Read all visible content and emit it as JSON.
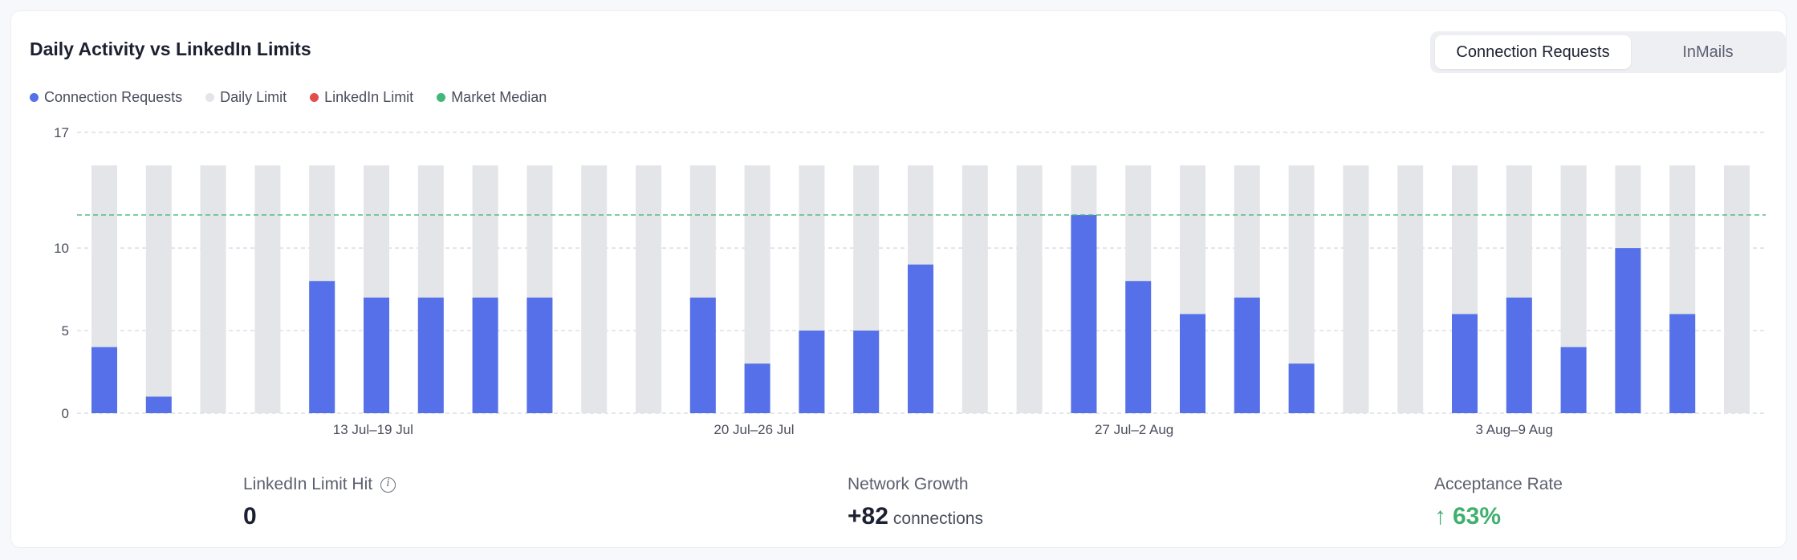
{
  "header": {
    "title": "Daily Activity vs LinkedIn Limits",
    "tabs": [
      {
        "label": "Connection Requests",
        "active": true
      },
      {
        "label": "InMails",
        "active": false
      }
    ]
  },
  "legend": [
    {
      "label": "Connection Requests",
      "color": "#5570e8"
    },
    {
      "label": "Daily Limit",
      "color": "#e4e5e9"
    },
    {
      "label": "LinkedIn Limit",
      "color": "#e54c4c"
    },
    {
      "label": "Market Median",
      "color": "#41b87a"
    }
  ],
  "chart_data": {
    "type": "bar",
    "title": "Daily Activity vs LinkedIn Limits",
    "xlabel": "",
    "ylabel": "",
    "ylim": [
      0,
      17
    ],
    "yticks": [
      0,
      5,
      10,
      17
    ],
    "x_week_labels": [
      {
        "label": "13 Jul–19 Jul",
        "start_index": 4
      },
      {
        "label": "20 Jul–26 Jul",
        "start_index": 11
      },
      {
        "label": "27 Jul–2 Aug",
        "start_index": 18
      },
      {
        "label": "3 Aug–9 Aug",
        "start_index": 25
      }
    ],
    "series": [
      {
        "name": "Connection Requests",
        "color": "#5570e8",
        "values": [
          4,
          1,
          0,
          0,
          8,
          7,
          7,
          7,
          7,
          0,
          0,
          7,
          3,
          5,
          5,
          9,
          0,
          0,
          12,
          8,
          6,
          7,
          3,
          0,
          0,
          6,
          7,
          4,
          10,
          6,
          0
        ]
      },
      {
        "name": "Daily Limit",
        "color": "#e4e5e9",
        "values": [
          15,
          15,
          15,
          15,
          15,
          15,
          15,
          15,
          15,
          15,
          15,
          15,
          15,
          15,
          15,
          15,
          15,
          15,
          15,
          15,
          15,
          15,
          15,
          15,
          15,
          15,
          15,
          15,
          15,
          15,
          15
        ]
      }
    ],
    "market_median": 12,
    "grid": true,
    "legend_position": "top-left"
  },
  "stats": {
    "limit_hit": {
      "label": "LinkedIn Limit Hit",
      "value": "0"
    },
    "network_growth": {
      "label": "Network Growth",
      "value": "+82",
      "unit": "connections"
    },
    "acceptance_rate": {
      "label": "Acceptance Rate",
      "value": "63%",
      "arrow": "↑"
    }
  }
}
